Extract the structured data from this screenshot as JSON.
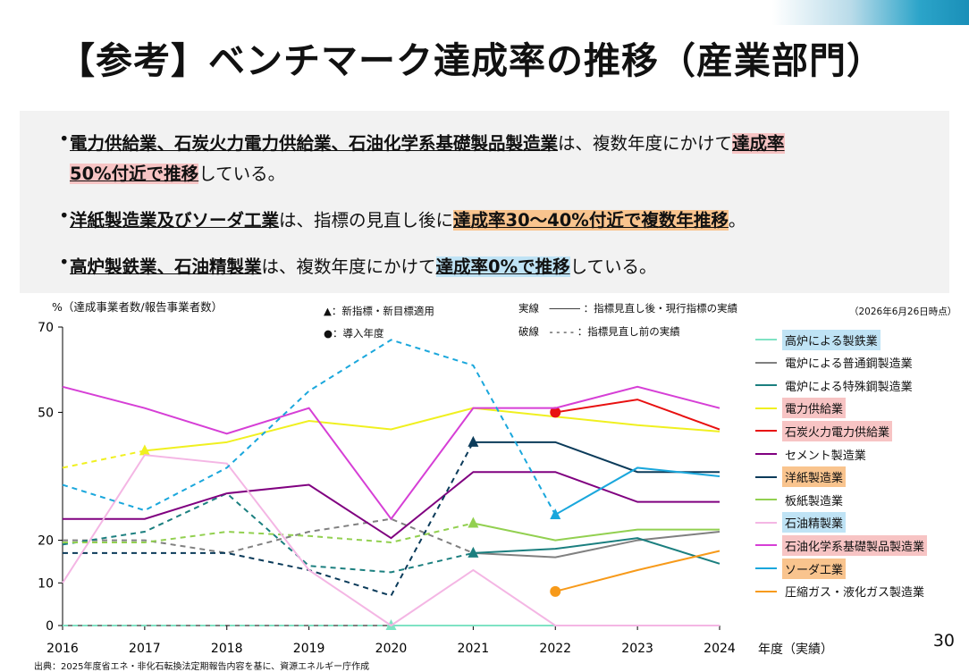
{
  "title": "【参考】ベンチマーク達成率の推移（産業部門）",
  "bullets": [
    {
      "parts": [
        {
          "text": "電力供給業、石炭火力電力供給業、石油化学系基礎製品製造業",
          "style": "ul"
        },
        {
          "text": "は、複数年度にかけて",
          "style": ""
        },
        {
          "text": "達成率",
          "style": "hl-pink"
        }
      ]
    },
    {
      "parts": [
        {
          "text": "50%付近で推移",
          "style": "hl-pink"
        },
        {
          "text": "している。",
          "style": ""
        }
      ]
    },
    {
      "parts": [
        {
          "text": "洋紙製造業及びソーダ工業",
          "style": "ul"
        },
        {
          "text": "は、指標の見直し後に",
          "style": ""
        },
        {
          "text": "達成率30～40%付近で複数年推移",
          "style": "hl-orange"
        },
        {
          "text": "。",
          "style": ""
        }
      ]
    },
    {
      "parts": [
        {
          "text": "高炉製鉄業、石油精製業",
          "style": "ul"
        },
        {
          "text": "は、複数年度にかけて",
          "style": ""
        },
        {
          "text": "達成率0%で推移",
          "style": "hl-blue"
        },
        {
          "text": "している。",
          "style": ""
        }
      ]
    }
  ],
  "bullet_symbol": "•",
  "notes": {
    "ylabel": "%（達成事業者数/報告事業者数）",
    "new_indicator": "▲：新指標・新目標適用",
    "intro_year": "●：導入年度",
    "solid": "実線　――― ：指標見直し後・現行指標の実績",
    "dashed": "破線　- - - - ：指標見直し前の実績",
    "as_of": "（2026年6月26日時点）",
    "xlabel": "年度（実績）"
  },
  "page_number": "30",
  "source": "出典：2025年度省エネ・非化石転換法定期報告内容を基に、資源エネルギー庁作成",
  "chart_data": {
    "type": "line",
    "x": [
      2016,
      2017,
      2018,
      2019,
      2020,
      2021,
      2022,
      2023,
      2024
    ],
    "xlim": [
      2016,
      2024
    ],
    "y_ticks": [
      0,
      10,
      20,
      50,
      70
    ],
    "ylim": [
      0,
      70
    ],
    "series": [
      {
        "name": "高炉による製鉄業",
        "color": "#7fe3c4",
        "highlight": "blue",
        "dashed": [
          [
            2016,
            0
          ],
          [
            2017,
            0
          ],
          [
            2018,
            0
          ],
          [
            2019,
            0
          ],
          [
            2020,
            0
          ]
        ],
        "solid": [
          [
            2020,
            0
          ],
          [
            2021,
            0
          ],
          [
            2022,
            0
          ],
          [
            2023,
            0
          ],
          [
            2024,
            0
          ]
        ],
        "markers": [
          {
            "x": 2020,
            "y": 0,
            "shape": "triangle"
          }
        ]
      },
      {
        "name": "電炉による普通鋼製造業",
        "color": "#808080",
        "highlight": "",
        "dashed": [
          [
            2016,
            20
          ],
          [
            2017,
            20
          ],
          [
            2018,
            17
          ],
          [
            2019,
            22
          ],
          [
            2020,
            25
          ],
          [
            2021,
            17
          ]
        ],
        "solid": [
          [
            2021,
            17
          ],
          [
            2022,
            16
          ],
          [
            2023,
            20
          ],
          [
            2024,
            22
          ]
        ],
        "markers": []
      },
      {
        "name": "電炉による特殊鋼製造業",
        "color": "#1b7f7f",
        "highlight": "",
        "dashed": [
          [
            2016,
            19
          ],
          [
            2017,
            22
          ],
          [
            2018,
            31
          ],
          [
            2019,
            14
          ],
          [
            2020,
            12.5
          ],
          [
            2021,
            17
          ]
        ],
        "solid": [
          [
            2021,
            17
          ],
          [
            2022,
            18
          ],
          [
            2023,
            20.5
          ],
          [
            2024,
            14.5
          ]
        ],
        "markers": [
          {
            "x": 2021,
            "y": 17,
            "shape": "triangle"
          }
        ]
      },
      {
        "name": "電力供給業",
        "color": "#f0f020",
        "highlight": "pink",
        "dashed": [
          [
            2016,
            37
          ],
          [
            2017,
            41
          ]
        ],
        "solid": [
          [
            2017,
            41
          ],
          [
            2018,
            43
          ],
          [
            2019,
            48
          ],
          [
            2020,
            46
          ],
          [
            2021,
            51
          ],
          [
            2022,
            49
          ],
          [
            2023,
            47
          ],
          [
            2024,
            45.5
          ]
        ],
        "markers": [
          {
            "x": 2017,
            "y": 41,
            "shape": "triangle"
          }
        ]
      },
      {
        "name": "石炭火力電力供給業",
        "color": "#e81010",
        "highlight": "pink",
        "dashed": [],
        "solid": [
          [
            2022,
            50
          ],
          [
            2023,
            53
          ],
          [
            2024,
            46
          ]
        ],
        "markers": [
          {
            "x": 2022,
            "y": 50,
            "shape": "circle"
          }
        ]
      },
      {
        "name": "セメント製造業",
        "color": "#800080",
        "highlight": "",
        "dashed": [],
        "solid": [
          [
            2016,
            25
          ],
          [
            2017,
            25
          ],
          [
            2018,
            31
          ],
          [
            2019,
            33
          ],
          [
            2020,
            20.5
          ],
          [
            2021,
            36
          ],
          [
            2022,
            36
          ],
          [
            2023,
            29
          ],
          [
            2024,
            29
          ]
        ],
        "markers": []
      },
      {
        "name": "洋紙製造業",
        "color": "#0b3b5a",
        "highlight": "orange",
        "dashed": [
          [
            2016,
            17
          ],
          [
            2017,
            17
          ],
          [
            2018,
            17
          ],
          [
            2019,
            13
          ],
          [
            2020,
            7
          ],
          [
            2021,
            43
          ]
        ],
        "solid": [
          [
            2021,
            43
          ],
          [
            2022,
            43
          ],
          [
            2023,
            36
          ],
          [
            2024,
            36
          ]
        ],
        "markers": [
          {
            "x": 2021,
            "y": 43,
            "shape": "triangle"
          }
        ]
      },
      {
        "name": "板紙製造業",
        "color": "#92d050",
        "highlight": "",
        "dashed": [
          [
            2016,
            19.5
          ],
          [
            2017,
            19.5
          ],
          [
            2018,
            22
          ],
          [
            2019,
            21
          ],
          [
            2020,
            19.5
          ],
          [
            2021,
            24
          ]
        ],
        "solid": [
          [
            2021,
            24
          ],
          [
            2022,
            20
          ],
          [
            2023,
            22.5
          ],
          [
            2024,
            22.5
          ]
        ],
        "markers": [
          {
            "x": 2021,
            "y": 24,
            "shape": "triangle"
          }
        ]
      },
      {
        "name": "石油精製業",
        "color": "#f4b6e4",
        "highlight": "blue",
        "dashed": [],
        "solid": [
          [
            2016,
            10
          ],
          [
            2017,
            40
          ],
          [
            2018,
            38
          ],
          [
            2019,
            13
          ],
          [
            2020,
            0
          ],
          [
            2021,
            13
          ],
          [
            2022,
            0
          ],
          [
            2023,
            0
          ],
          [
            2024,
            0
          ]
        ],
        "markers": []
      },
      {
        "name": "石油化学系基礎製品製造業",
        "color": "#d63fd6",
        "highlight": "pink",
        "dashed": [],
        "solid": [
          [
            2016,
            56
          ],
          [
            2017,
            51
          ],
          [
            2018,
            45
          ],
          [
            2019,
            51
          ],
          [
            2020,
            25
          ],
          [
            2021,
            51
          ],
          [
            2022,
            51
          ],
          [
            2023,
            56
          ],
          [
            2024,
            51
          ]
        ],
        "markers": []
      },
      {
        "name": "ソーダ工業",
        "color": "#1aa7dc",
        "highlight": "orange",
        "dashed": [
          [
            2016,
            33
          ],
          [
            2017,
            27
          ],
          [
            2018,
            37
          ],
          [
            2019,
            55
          ],
          [
            2020,
            67
          ],
          [
            2021,
            61
          ],
          [
            2022,
            26
          ]
        ],
        "solid": [
          [
            2022,
            26
          ],
          [
            2023,
            37
          ],
          [
            2024,
            35
          ]
        ],
        "markers": [
          {
            "x": 2022,
            "y": 26,
            "shape": "triangle"
          }
        ]
      },
      {
        "name": "圧縮ガス・液化ガス製造業",
        "color": "#f79a1a",
        "highlight": "",
        "dashed": [],
        "solid": [
          [
            2022,
            8
          ],
          [
            2023,
            13
          ],
          [
            2024,
            17.5
          ]
        ],
        "markers": [
          {
            "x": 2022,
            "y": 8,
            "shape": "circle"
          }
        ]
      }
    ]
  }
}
